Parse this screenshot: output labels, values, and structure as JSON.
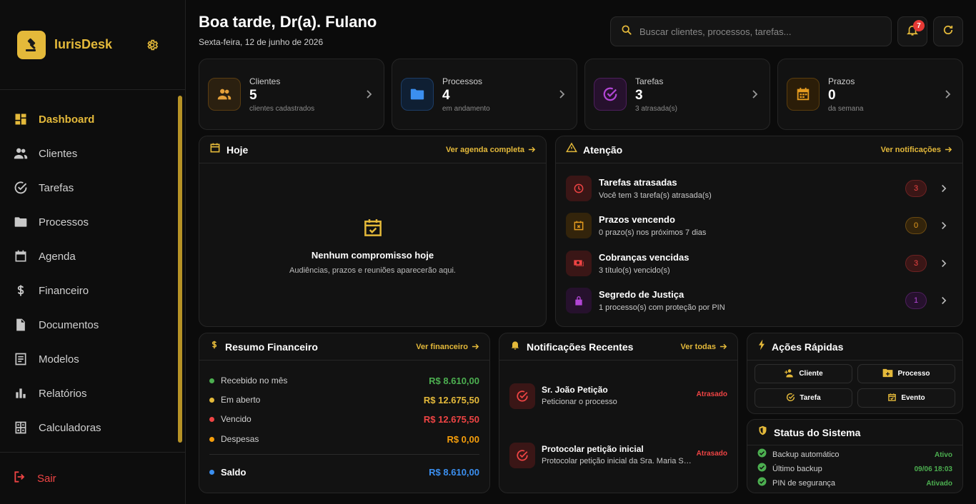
{
  "brand": {
    "name": "IurisDesk"
  },
  "sidebar": {
    "items": [
      {
        "label": "Dashboard"
      },
      {
        "label": "Clientes"
      },
      {
        "label": "Tarefas"
      },
      {
        "label": "Processos"
      },
      {
        "label": "Agenda"
      },
      {
        "label": "Financeiro"
      },
      {
        "label": "Documentos"
      },
      {
        "label": "Modelos"
      },
      {
        "label": "Relatórios"
      },
      {
        "label": "Calculadoras"
      }
    ],
    "logout": "Sair"
  },
  "header": {
    "greeting": "Boa tarde, Dr(a). Fulano",
    "date": "Sexta-feira, 12 de junho de 2026",
    "search_placeholder": "Buscar clientes, processos, tarefas...",
    "notification_count": "7"
  },
  "stats": [
    {
      "title": "Clientes",
      "value": "5",
      "sub": "clientes cadastrados",
      "color": "#e4a03a"
    },
    {
      "title": "Processos",
      "value": "4",
      "sub": "em andamento",
      "color": "#3b8ff0"
    },
    {
      "title": "Tarefas",
      "value": "3",
      "sub": "3 atrasada(s)",
      "color": "#b246d6"
    },
    {
      "title": "Prazos",
      "value": "0",
      "sub": "da semana",
      "color": "#e49b1f"
    }
  ],
  "today": {
    "title": "Hoje",
    "link": "Ver agenda completa",
    "empty_title": "Nenhum compromisso hoje",
    "empty_sub": "Audiências, prazos e reuniões aparecerão aqui."
  },
  "attention": {
    "title": "Atenção",
    "link": "Ver notificações",
    "items": [
      {
        "title": "Tarefas atrasadas",
        "sub": "Você tem 3 tarefa(s) atrasada(s)",
        "count": "3",
        "color": "#ef4444"
      },
      {
        "title": "Prazos vencendo",
        "sub": "0 prazo(s) nos próximos 7 dias",
        "count": "0",
        "color": "#e49b1f"
      },
      {
        "title": "Cobranças vencidas",
        "sub": "3 título(s) vencido(s)",
        "count": "3",
        "color": "#ef4444"
      },
      {
        "title": "Segredo de Justiça",
        "sub": "1 processo(s) com proteção por PIN",
        "count": "1",
        "color": "#b246d6"
      }
    ]
  },
  "finance": {
    "title": "Resumo Financeiro",
    "link": "Ver financeiro",
    "rows": [
      {
        "label": "Recebido no mês",
        "value": "R$ 8.610,00",
        "color": "#4caf50"
      },
      {
        "label": "Em aberto",
        "value": "R$ 12.675,50",
        "color": "#e4b93a"
      },
      {
        "label": "Vencido",
        "value": "R$ 12.675,50",
        "color": "#ef4444"
      },
      {
        "label": "Despesas",
        "value": "R$ 0,00",
        "color": "#f59e0b"
      }
    ],
    "balance": {
      "label": "Saldo",
      "value": "R$ 8.610,00",
      "color": "#3b8ff0"
    }
  },
  "notifications": {
    "title": "Notificações Recentes",
    "link": "Ver todas",
    "items": [
      {
        "title": "Sr. João Petição",
        "sub": "Peticionar o processo",
        "status": "Atrasado"
      },
      {
        "title": "Protocolar petição inicial",
        "sub": "Protocolar petição inicial da Sra. Maria Silva",
        "status": "Atrasado"
      }
    ]
  },
  "quick_actions": {
    "title": "Ações Rápidas",
    "buttons": [
      {
        "label": "Cliente",
        "icon": "add-user-icon"
      },
      {
        "label": "Processo",
        "icon": "add-folder-icon"
      },
      {
        "label": "Tarefa",
        "icon": "check-circle-icon"
      },
      {
        "label": "Evento",
        "icon": "calendar-check-icon"
      }
    ]
  },
  "system_status": {
    "title": "Status do Sistema",
    "rows": [
      {
        "label": "Backup automático",
        "value": "Ativo"
      },
      {
        "label": "Último backup",
        "value": "09/06 18:03"
      },
      {
        "label": "PIN de segurança",
        "value": "Ativado"
      }
    ]
  }
}
